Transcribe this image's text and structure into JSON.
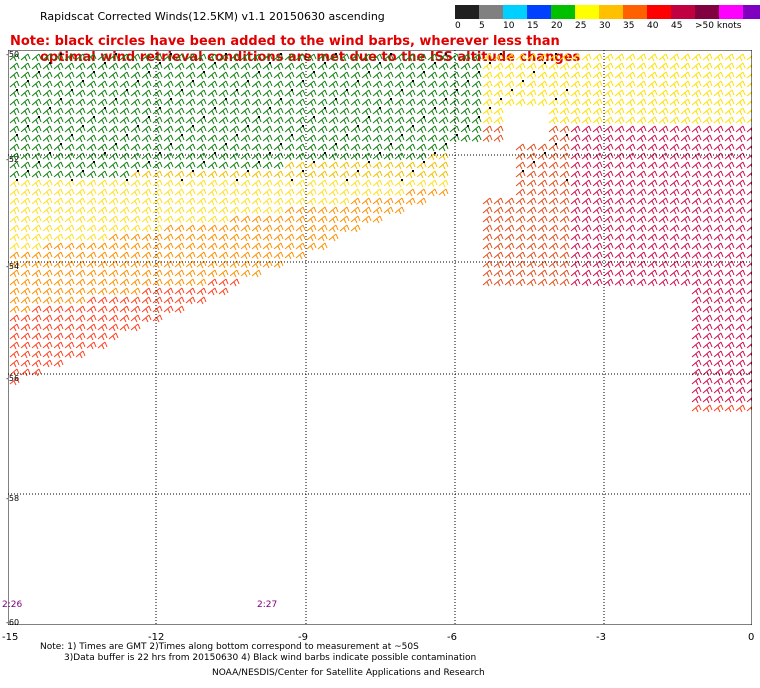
{
  "title": "Rapidscat Corrected Winds(12.5KM) v1.1 20150630 ascending",
  "note_line1": "Note: black circles have been added to the wind barbs, wherever less than",
  "note_line2": "optimal wind retrieval conditions are met due to the ISS altitude changes",
  "legend": {
    "colors": [
      "#202020",
      "#808080",
      "#00d0ff",
      "#0040ff",
      "#00c000",
      "#ffff00",
      "#ffc000",
      "#ff6000",
      "#ff0000",
      "#c00040",
      "#800040",
      "#ff00ff",
      "#8000c0",
      "#400080"
    ],
    "labels": [
      "0",
      "5",
      "10",
      "15",
      "20",
      "25",
      "30",
      "35",
      "40",
      "45",
      ">50 knots"
    ]
  },
  "lat_labels": [
    "-50",
    "-52",
    "-54",
    "-56",
    "-58",
    "-60"
  ],
  "lon_labels": [
    "-15",
    "-12",
    "-9",
    "-6",
    "-3",
    "0"
  ],
  "time_labels": [
    "2:26",
    "2:27"
  ],
  "bottom_note_line1": "Note: 1) Times are GMT 2)Times along bottom correspond to measurement at ~50S",
  "bottom_note_line2": "3)Data buffer is 22 hrs from 20150630 4) Black wind barbs indicate possible contamination",
  "credit": "NOAA/NESDIS/Center for Satellite Applications and Research"
}
